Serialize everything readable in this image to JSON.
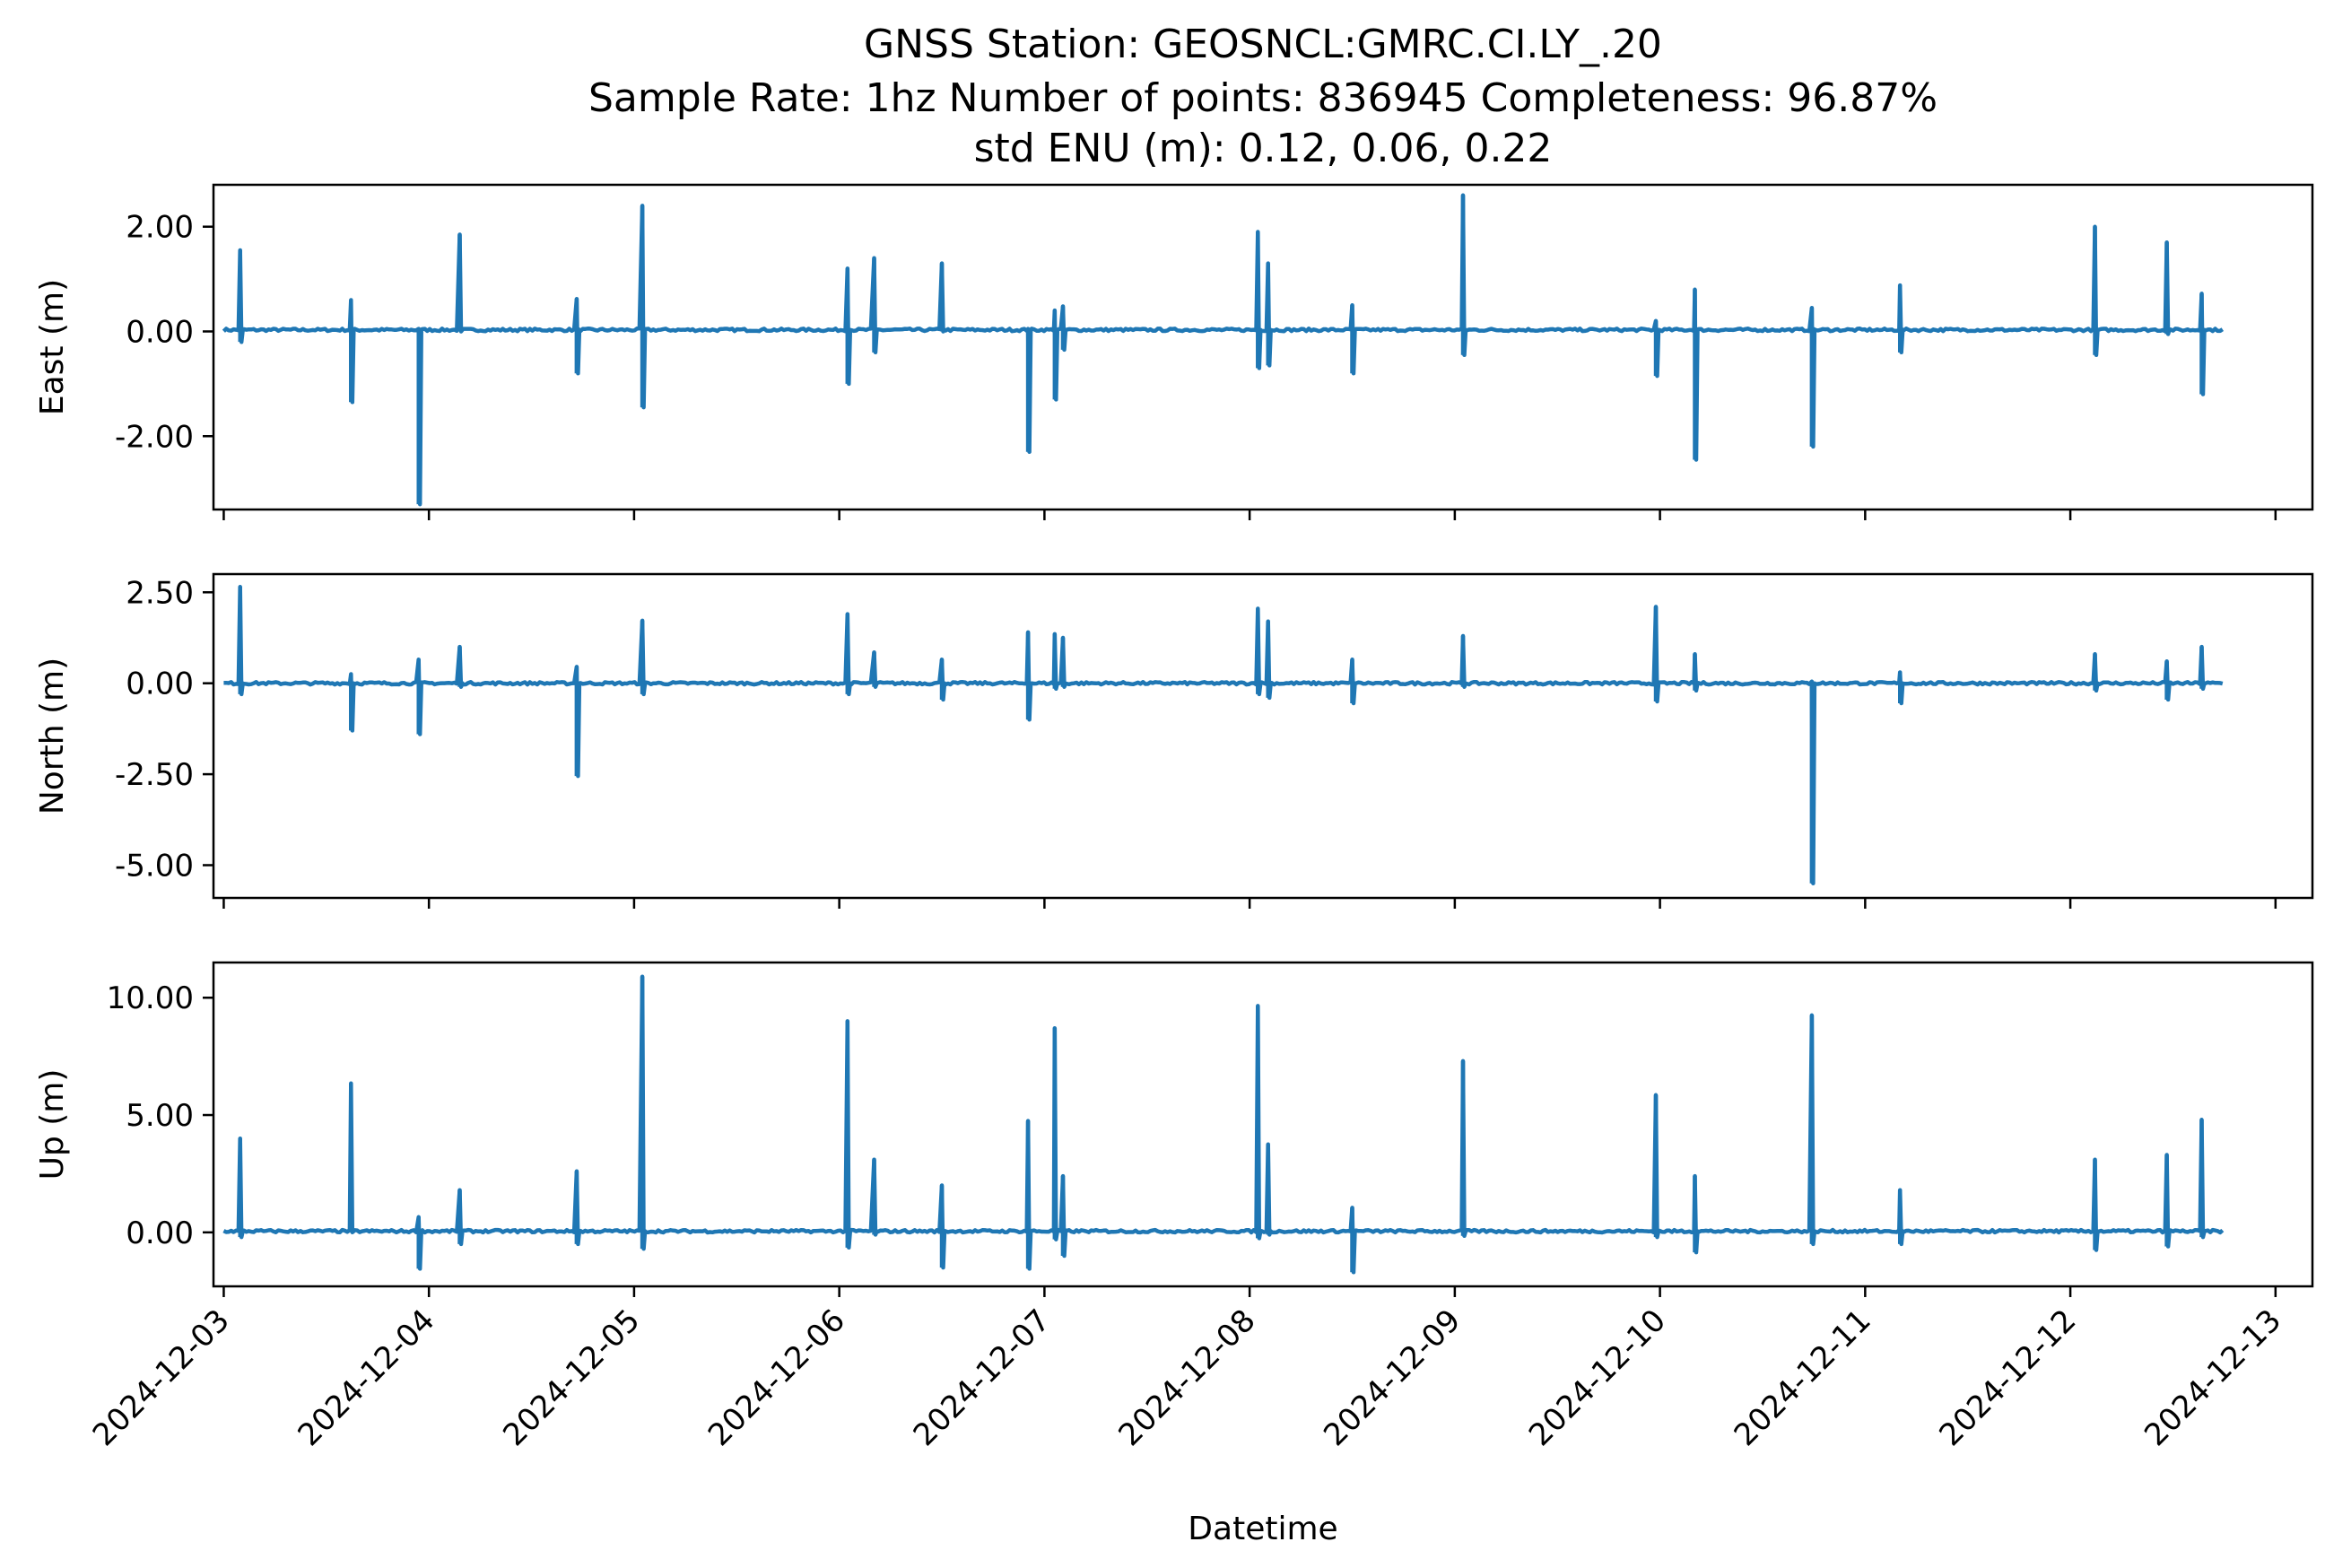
{
  "title": {
    "line1": "GNSS Station: GEOSNCL:GMRC.CI.LY_.20",
    "line2": "Sample Rate: 1hz   Number of points: 836945    Completeness:  96.87%",
    "line3": "std ENU (m):  0.12, 0.06, 0.22"
  },
  "xlabel": "Datetime",
  "colors": {
    "series": "#1f77b4",
    "axes": "#000000",
    "background": "#ffffff"
  },
  "chart_data": [
    {
      "type": "line",
      "ylabel": "East (m)",
      "xlim": [
        -0.05,
        10.18
      ],
      "ylim": [
        -3.4,
        2.8
      ],
      "yticks": [
        2.0,
        0.0,
        -2.0
      ],
      "ytick_labels": [
        "2.00",
        "0.00",
        "-2.00"
      ],
      "baseline": 0.03,
      "spikes": [
        [
          0.08,
          1.55,
          -0.2
        ],
        [
          0.62,
          0.6,
          -1.35
        ],
        [
          0.95,
          0.05,
          -3.3
        ],
        [
          1.15,
          1.85,
          0.0
        ],
        [
          1.72,
          0.62,
          -0.8
        ],
        [
          2.04,
          2.4,
          -1.45
        ],
        [
          3.04,
          1.2,
          -1.0
        ],
        [
          3.17,
          1.4,
          -0.4
        ],
        [
          3.5,
          1.3,
          0.0
        ],
        [
          3.92,
          0.05,
          -2.3
        ],
        [
          4.05,
          0.4,
          -1.3
        ],
        [
          4.09,
          0.48,
          -0.35
        ],
        [
          5.04,
          1.9,
          -0.7
        ],
        [
          5.09,
          1.3,
          -0.65
        ],
        [
          5.5,
          0.5,
          -0.8
        ],
        [
          6.04,
          2.6,
          -0.45
        ],
        [
          6.98,
          0.2,
          -0.85
        ],
        [
          7.17,
          0.8,
          -2.45
        ],
        [
          7.74,
          0.45,
          -2.2
        ],
        [
          8.17,
          0.88,
          -0.4
        ],
        [
          9.12,
          2.0,
          -0.45
        ],
        [
          9.47,
          1.7,
          -0.05
        ],
        [
          9.64,
          0.72,
          -1.2
        ]
      ]
    },
    {
      "type": "line",
      "ylabel": "North (m)",
      "xlim": [
        -0.05,
        10.18
      ],
      "ylim": [
        -5.9,
        3.0
      ],
      "yticks": [
        2.5,
        0.0,
        -2.5,
        -5.0
      ],
      "ytick_labels": [
        "2.50",
        "0.00",
        "-2.50",
        "-5.00"
      ],
      "baseline": 0.0,
      "spikes": [
        [
          0.08,
          2.65,
          -0.3
        ],
        [
          0.62,
          0.25,
          -1.3
        ],
        [
          0.95,
          0.65,
          -1.4
        ],
        [
          1.15,
          1.0,
          -0.1
        ],
        [
          1.72,
          0.45,
          -2.55
        ],
        [
          2.04,
          1.72,
          -0.3
        ],
        [
          3.04,
          1.9,
          -0.3
        ],
        [
          3.17,
          0.85,
          -0.1
        ],
        [
          3.5,
          0.65,
          -0.45
        ],
        [
          3.92,
          1.4,
          -1.0
        ],
        [
          4.05,
          1.35,
          -0.15
        ],
        [
          4.09,
          1.25,
          -0.1
        ],
        [
          5.04,
          2.05,
          -0.3
        ],
        [
          5.09,
          1.7,
          -0.4
        ],
        [
          5.5,
          0.65,
          -0.55
        ],
        [
          6.04,
          1.3,
          -0.1
        ],
        [
          6.98,
          2.1,
          -0.5
        ],
        [
          7.17,
          0.8,
          -0.2
        ],
        [
          7.74,
          0.05,
          -5.5
        ],
        [
          8.17,
          0.3,
          -0.55
        ],
        [
          9.12,
          0.8,
          -0.2
        ],
        [
          9.47,
          0.6,
          -0.45
        ],
        [
          9.64,
          1.0,
          -0.15
        ]
      ]
    },
    {
      "type": "line",
      "ylabel": "Up (m)",
      "xlim": [
        -0.05,
        10.18
      ],
      "ylim": [
        -2.3,
        11.5
      ],
      "yticks": [
        10.0,
        5.0,
        0.0
      ],
      "ytick_labels": [
        "10.00",
        "5.00",
        "0.00"
      ],
      "baseline": 0.05,
      "spikes": [
        [
          0.08,
          4.0,
          -0.2
        ],
        [
          0.62,
          6.35,
          0.0
        ],
        [
          0.95,
          0.65,
          -1.55
        ],
        [
          1.15,
          1.8,
          -0.5
        ],
        [
          1.72,
          2.6,
          -0.5
        ],
        [
          2.04,
          10.9,
          -0.7
        ],
        [
          3.04,
          9.0,
          -0.65
        ],
        [
          3.17,
          3.1,
          -0.1
        ],
        [
          3.5,
          2.0,
          -1.5
        ],
        [
          3.92,
          4.75,
          -1.55
        ],
        [
          4.05,
          8.7,
          -0.3
        ],
        [
          4.09,
          2.4,
          -1.0
        ],
        [
          5.04,
          9.65,
          -0.25
        ],
        [
          5.09,
          3.75,
          -0.1
        ],
        [
          5.5,
          1.05,
          -1.7
        ],
        [
          6.04,
          7.3,
          -0.15
        ],
        [
          6.98,
          5.85,
          -0.2
        ],
        [
          7.17,
          2.4,
          -0.85
        ],
        [
          7.74,
          9.25,
          -0.5
        ],
        [
          8.17,
          1.8,
          -0.5
        ],
        [
          9.12,
          3.1,
          -0.75
        ],
        [
          9.47,
          3.3,
          -0.6
        ],
        [
          9.64,
          4.8,
          -0.2
        ]
      ]
    }
  ],
  "x_axis": {
    "ticks": [
      0,
      1,
      2,
      3,
      4,
      5,
      6,
      7,
      8,
      9,
      10
    ],
    "tick_labels": [
      "2024-12-03",
      "2024-12-04",
      "2024-12-05",
      "2024-12-06",
      "2024-12-07",
      "2024-12-08",
      "2024-12-09",
      "2024-12-10",
      "2024-12-11",
      "2024-12-12",
      "2024-12-13"
    ],
    "data_end": 9.75
  }
}
